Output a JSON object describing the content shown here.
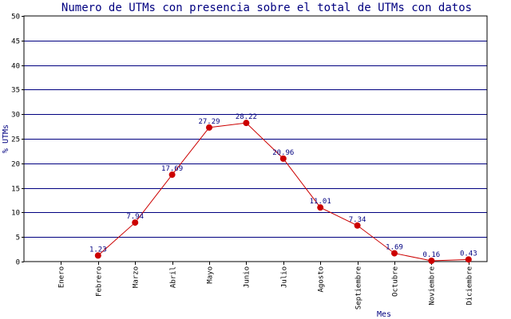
{
  "chart_data": {
    "type": "line",
    "title": "Numero de UTMs con presencia sobre el total de UTMs con datos",
    "xlabel": "Mes",
    "ylabel": "% UTMs",
    "ylim": [
      0,
      50
    ],
    "yticks": [
      0,
      5,
      10,
      15,
      20,
      25,
      30,
      35,
      40,
      45,
      50
    ],
    "grid": true,
    "categories": [
      "Enero",
      "Febrero",
      "Marzo",
      "Abril",
      "Mayo",
      "Junio",
      "Julio",
      "Agosto",
      "Septiembre",
      "Octubre",
      "Noviembre",
      "Diciembre"
    ],
    "series": [
      {
        "values": [
          null,
          1.23,
          7.94,
          17.69,
          27.29,
          28.22,
          20.96,
          11.01,
          7.34,
          1.69,
          0.16,
          0.43
        ],
        "labels": [
          null,
          "1.23",
          "7.94",
          "17.69",
          "27.29",
          "28.22",
          "20.96",
          "11.01",
          "7.34",
          "1.69",
          "0.16",
          "0.43"
        ]
      }
    ],
    "colors": {
      "line": "#cc0000",
      "marker": "#cc0000",
      "grid": "#000080",
      "frame": "#000000",
      "text": "#000080"
    }
  }
}
